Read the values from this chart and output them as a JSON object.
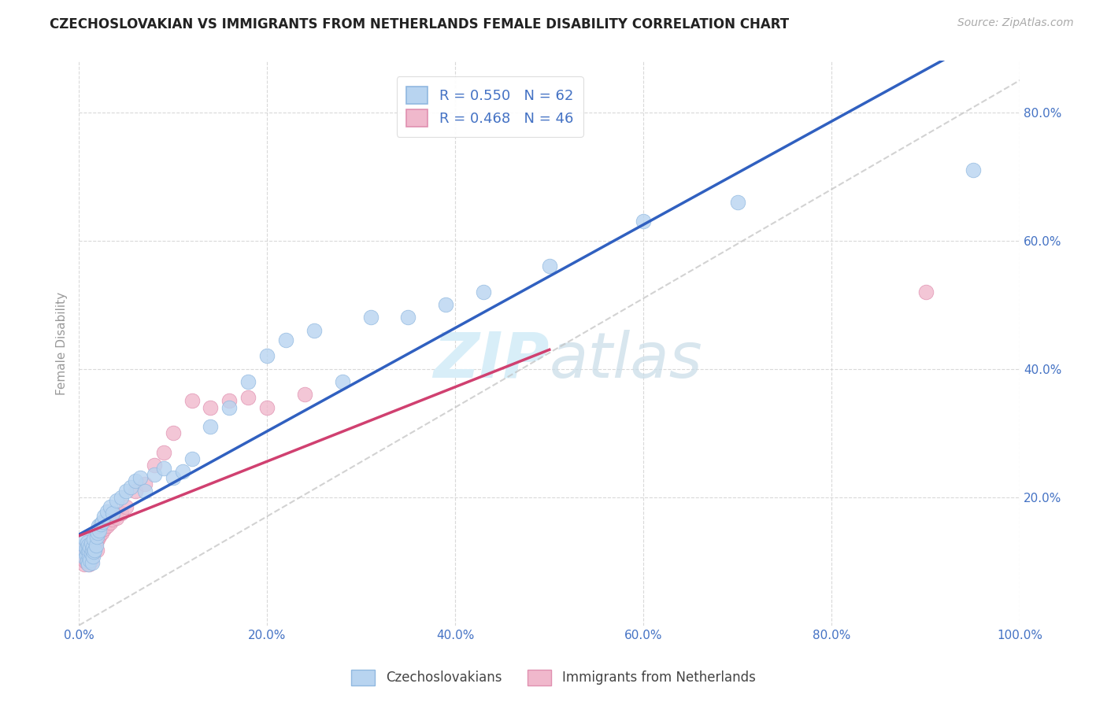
{
  "title": "CZECHOSLOVAKIAN VS IMMIGRANTS FROM NETHERLANDS FEMALE DISABILITY CORRELATION CHART",
  "source": "Source: ZipAtlas.com",
  "ylabel": "Female Disability",
  "xlim": [
    0,
    1.0
  ],
  "ylim": [
    0,
    0.88
  ],
  "xticks": [
    0.0,
    0.2,
    0.4,
    0.6,
    0.8,
    1.0
  ],
  "xticklabels": [
    "0.0%",
    "20.0%",
    "40.0%",
    "60.0%",
    "80.0%",
    "100.0%"
  ],
  "yticks": [
    0.2,
    0.4,
    0.6,
    0.8
  ],
  "yticklabels": [
    "20.0%",
    "40.0%",
    "60.0%",
    "80.0%"
  ],
  "grid_color": "#d0d0d0",
  "background_color": "#ffffff",
  "blue_color": "#b8d4f0",
  "pink_color": "#f0b8cc",
  "blue_line_color": "#3060c0",
  "pink_line_color": "#d04070",
  "blue_marker_edge": "#90b8e0",
  "pink_marker_edge": "#e090b0",
  "R_blue": 0.55,
  "N_blue": 62,
  "R_pink": 0.468,
  "N_pink": 46,
  "legend_label_blue": "Czechoslovakians",
  "legend_label_pink": "Immigrants from Netherlands",
  "blue_scatter_x": [
    0.005,
    0.006,
    0.007,
    0.007,
    0.008,
    0.008,
    0.009,
    0.009,
    0.01,
    0.01,
    0.01,
    0.011,
    0.011,
    0.012,
    0.012,
    0.013,
    0.013,
    0.014,
    0.014,
    0.015,
    0.015,
    0.016,
    0.016,
    0.017,
    0.018,
    0.019,
    0.02,
    0.021,
    0.022,
    0.023,
    0.025,
    0.027,
    0.03,
    0.033,
    0.036,
    0.04,
    0.045,
    0.05,
    0.055,
    0.06,
    0.065,
    0.07,
    0.08,
    0.09,
    0.1,
    0.11,
    0.12,
    0.14,
    0.16,
    0.18,
    0.2,
    0.22,
    0.25,
    0.28,
    0.31,
    0.35,
    0.39,
    0.43,
    0.5,
    0.6,
    0.7,
    0.95
  ],
  "blue_scatter_y": [
    0.115,
    0.125,
    0.105,
    0.135,
    0.11,
    0.12,
    0.1,
    0.13,
    0.095,
    0.115,
    0.125,
    0.108,
    0.118,
    0.102,
    0.122,
    0.112,
    0.128,
    0.098,
    0.118,
    0.108,
    0.122,
    0.115,
    0.135,
    0.118,
    0.125,
    0.138,
    0.145,
    0.155,
    0.148,
    0.158,
    0.162,
    0.17,
    0.178,
    0.185,
    0.175,
    0.195,
    0.2,
    0.21,
    0.215,
    0.225,
    0.23,
    0.21,
    0.235,
    0.245,
    0.23,
    0.24,
    0.26,
    0.31,
    0.34,
    0.38,
    0.42,
    0.445,
    0.46,
    0.38,
    0.48,
    0.48,
    0.5,
    0.52,
    0.56,
    0.63,
    0.66,
    0.71
  ],
  "pink_scatter_x": [
    0.004,
    0.005,
    0.006,
    0.006,
    0.007,
    0.007,
    0.008,
    0.008,
    0.009,
    0.009,
    0.01,
    0.01,
    0.011,
    0.011,
    0.012,
    0.012,
    0.013,
    0.013,
    0.014,
    0.015,
    0.016,
    0.017,
    0.018,
    0.019,
    0.02,
    0.022,
    0.024,
    0.027,
    0.03,
    0.033,
    0.036,
    0.04,
    0.045,
    0.05,
    0.06,
    0.07,
    0.08,
    0.09,
    0.1,
    0.12,
    0.14,
    0.16,
    0.18,
    0.2,
    0.24,
    0.9
  ],
  "pink_scatter_y": [
    0.108,
    0.115,
    0.095,
    0.12,
    0.1,
    0.112,
    0.105,
    0.118,
    0.098,
    0.11,
    0.102,
    0.115,
    0.095,
    0.12,
    0.105,
    0.118,
    0.1,
    0.125,
    0.11,
    0.115,
    0.12,
    0.125,
    0.13,
    0.118,
    0.135,
    0.14,
    0.145,
    0.15,
    0.155,
    0.16,
    0.165,
    0.168,
    0.175,
    0.185,
    0.21,
    0.22,
    0.25,
    0.27,
    0.3,
    0.35,
    0.34,
    0.35,
    0.355,
    0.34,
    0.36,
    0.52
  ],
  "title_color": "#222222",
  "axis_label_color": "#999999",
  "tick_label_color": "#4472c4",
  "source_color": "#aaaaaa",
  "watermark_color": "#d8eef8"
}
